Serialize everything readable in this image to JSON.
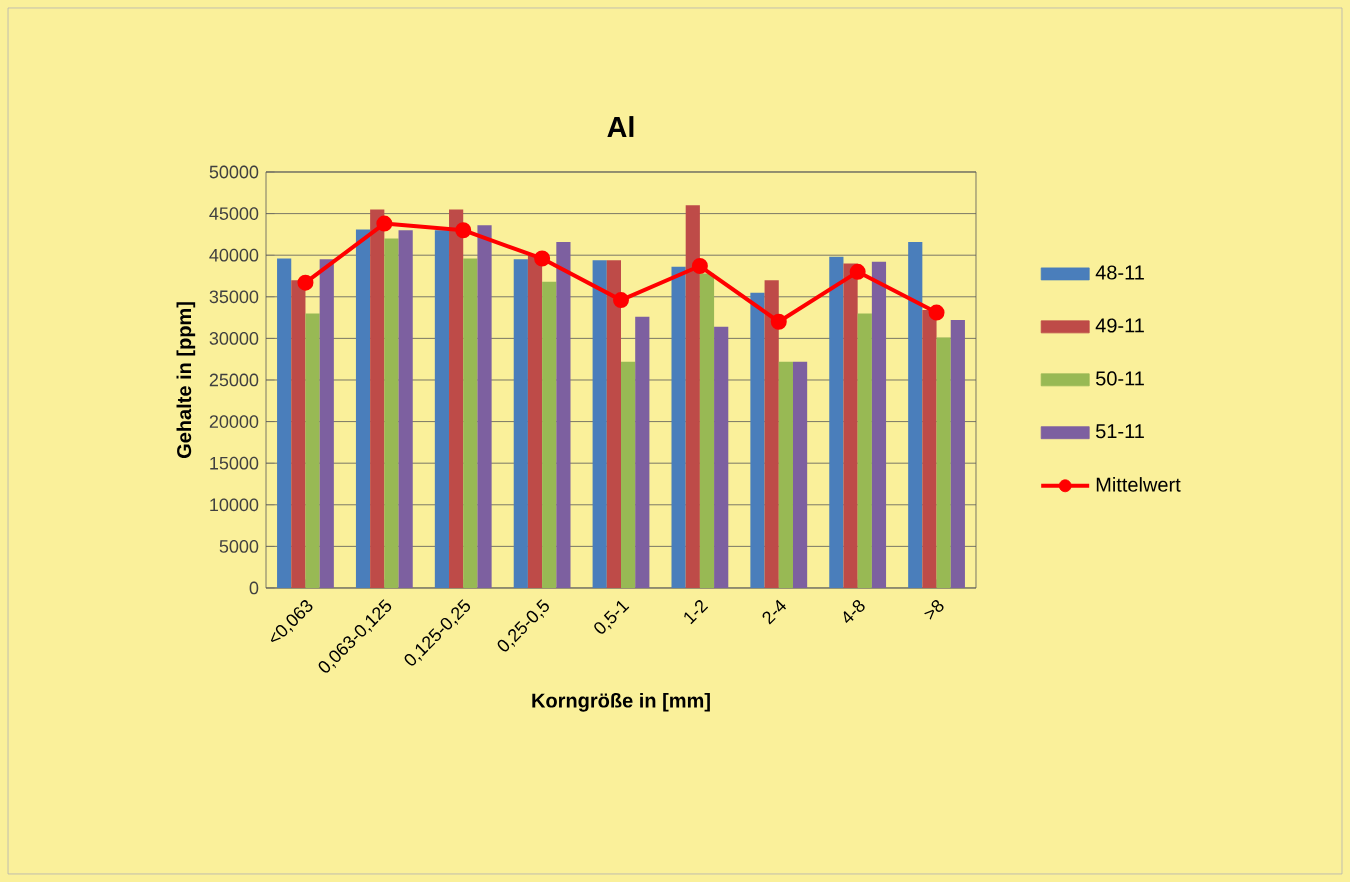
{
  "chart_data": {
    "type": "bar",
    "title": "Al",
    "xlabel": "Korngröße in [mm]",
    "ylabel": "Gehalte in [ppm]",
    "categories": [
      "<0,063",
      "0,063-0,125",
      "0,125-0,25",
      "0,25-0,5",
      "0,5-1",
      "1-2",
      "2-4",
      "4-8",
      ">8"
    ],
    "series": [
      {
        "name": "48-11",
        "color": "#4a7ebb",
        "values": [
          39600,
          43100,
          43000,
          39500,
          39400,
          38600,
          35500,
          39800,
          41600
        ]
      },
      {
        "name": "49-11",
        "color": "#be4b48",
        "values": [
          37000,
          45500,
          45500,
          40000,
          39400,
          46000,
          37000,
          39000,
          33400
        ]
      },
      {
        "name": "50-11",
        "color": "#98b954",
        "values": [
          33000,
          42000,
          39600,
          36800,
          27200,
          37800,
          27200,
          33000,
          30100
        ]
      },
      {
        "name": "51-11",
        "color": "#7d60a0",
        "values": [
          39500,
          43000,
          43600,
          41600,
          32600,
          31400,
          27200,
          39200,
          32200
        ]
      },
      {
        "name": "Mittelwert",
        "type": "line",
        "color": "#ff0000",
        "marker": "circle",
        "values": [
          36700,
          43800,
          43000,
          39600,
          34600,
          38700,
          32000,
          38000,
          33100
        ]
      }
    ],
    "ylim": [
      0,
      50000
    ],
    "yticks": [
      0,
      5000,
      10000,
      15000,
      20000,
      25000,
      30000,
      35000,
      40000,
      45000,
      50000
    ],
    "grid": "y",
    "legend": "right"
  }
}
